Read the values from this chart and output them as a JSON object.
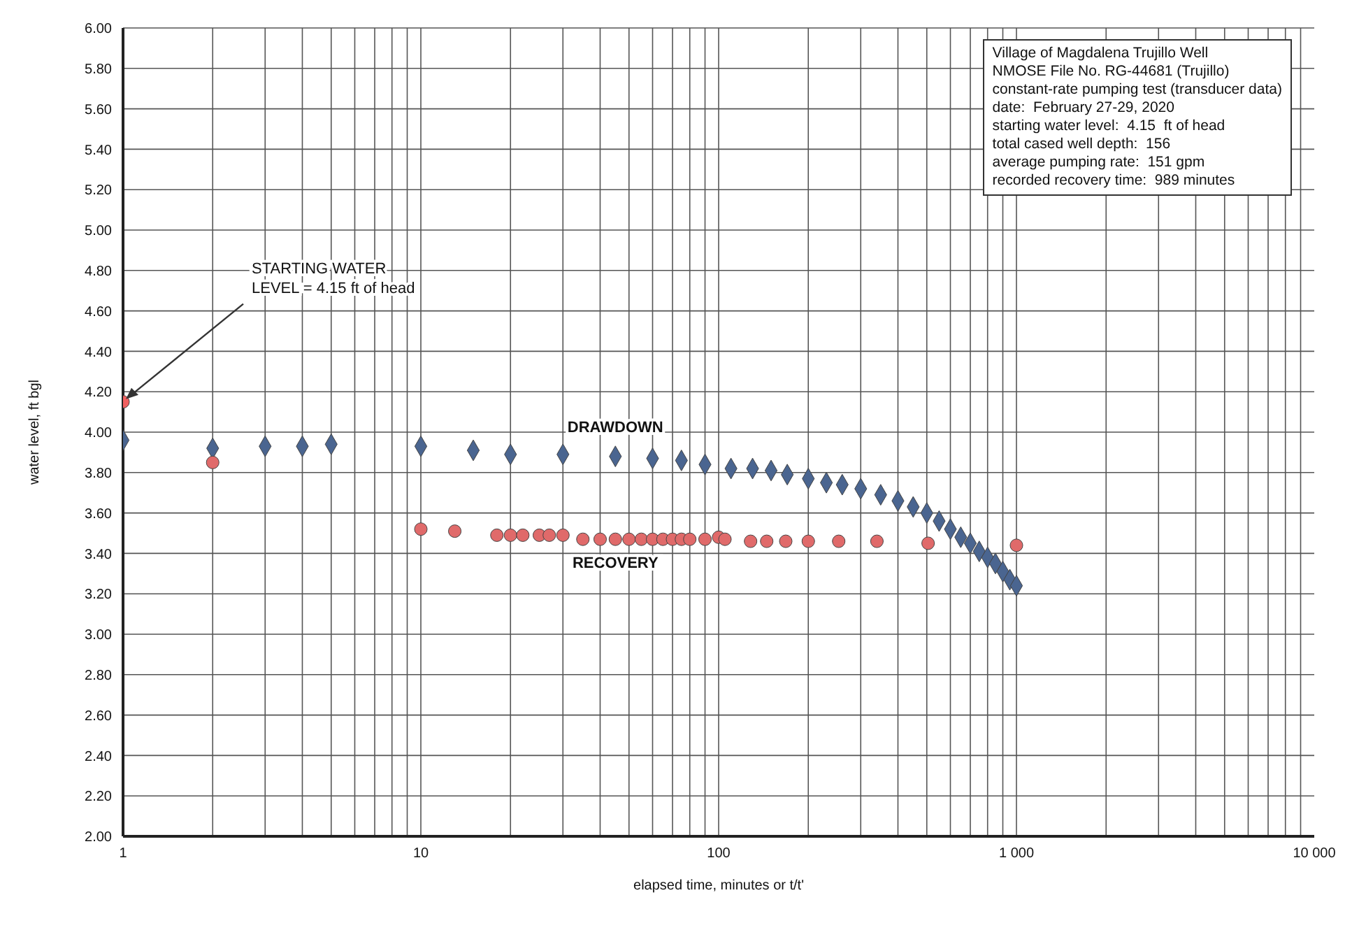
{
  "chart_data": {
    "type": "scatter",
    "xlabel": "elapsed time, minutes or t/t'",
    "ylabel": "water level, ft bgl",
    "log": "x",
    "grid": true,
    "legend": false,
    "xlim": [
      1,
      10000
    ],
    "xticks": [
      {
        "value": 1,
        "label": "1"
      },
      {
        "value": 10,
        "label": "10"
      },
      {
        "value": 100,
        "label": "100"
      },
      {
        "value": 1000,
        "label": "1 000"
      },
      {
        "value": 10000,
        "label": "10 000"
      }
    ],
    "ylim": [
      2,
      6
    ],
    "yticks": [
      {
        "value": 2,
        "label": "2.00"
      },
      {
        "value": 2.2,
        "label": "2.20"
      },
      {
        "value": 2.4,
        "label": "2.40"
      },
      {
        "value": 2.6,
        "label": "2.60"
      },
      {
        "value": 2.8,
        "label": "2.80"
      },
      {
        "value": 3,
        "label": "3.00"
      },
      {
        "value": 3.2,
        "label": "3.20"
      },
      {
        "value": 3.4,
        "label": "3.40"
      },
      {
        "value": 3.6,
        "label": "3.60"
      },
      {
        "value": 3.8,
        "label": "3.80"
      },
      {
        "value": 4,
        "label": "4.00"
      },
      {
        "value": 4.2,
        "label": "4.20"
      },
      {
        "value": 4.4,
        "label": "4.40"
      },
      {
        "value": 4.6,
        "label": "4.60"
      },
      {
        "value": 4.8,
        "label": "4.80"
      },
      {
        "value": 5,
        "label": "5.00"
      },
      {
        "value": 5.2,
        "label": "5.20"
      },
      {
        "value": 5.4,
        "label": "5.40"
      },
      {
        "value": 5.6,
        "label": "5.60"
      },
      {
        "value": 5.8,
        "label": "5.80"
      },
      {
        "value": 6,
        "label": "6.00"
      }
    ],
    "series": [
      {
        "name": "DRAWDOWN",
        "color": "#4a6590",
        "marker": "diamond",
        "x": [
          1,
          2,
          3,
          4,
          5,
          10,
          15,
          20,
          30,
          45,
          60,
          75,
          90,
          110,
          130,
          150,
          170,
          200,
          230,
          260,
          300,
          350,
          400,
          450,
          500,
          550,
          600,
          650,
          700,
          750,
          800,
          850,
          900,
          950,
          1000
        ],
        "values": [
          3.96,
          3.92,
          3.93,
          3.93,
          3.94,
          3.93,
          3.91,
          3.89,
          3.89,
          3.88,
          3.87,
          3.86,
          3.84,
          3.82,
          3.82,
          3.81,
          3.79,
          3.77,
          3.75,
          3.74,
          3.72,
          3.69,
          3.66,
          3.63,
          3.6,
          3.56,
          3.52,
          3.48,
          3.45,
          3.41,
          3.38,
          3.35,
          3.31,
          3.27,
          3.24
        ]
      },
      {
        "name": "RECOVERY",
        "color": "#e06a6a",
        "marker": "circle",
        "x": [
          2,
          10,
          13,
          18,
          20,
          22,
          25,
          27,
          30,
          35,
          40,
          45,
          50,
          55,
          60,
          65,
          70,
          75,
          80,
          90,
          100,
          105,
          128,
          145,
          168,
          200,
          253,
          340,
          505,
          1000
        ],
        "values": [
          3.85,
          3.52,
          3.51,
          3.49,
          3.49,
          3.49,
          3.49,
          3.49,
          3.49,
          3.47,
          3.47,
          3.47,
          3.47,
          3.47,
          3.47,
          3.47,
          3.47,
          3.47,
          3.47,
          3.47,
          3.48,
          3.47,
          3.46,
          3.46,
          3.46,
          3.46,
          3.46,
          3.46,
          3.45,
          3.44
        ]
      },
      {
        "color": "#f06060",
        "marker": "circle",
        "x": [
          1
        ],
        "values": [
          4.15
        ]
      }
    ],
    "annotations": [
      {
        "text": "STARTING WATER\nLEVEL = 4.15 ft of head",
        "x": 1,
        "y": 4.15
      },
      "Village of Magdalena Trujillo Well\nNMOSE File No. RG-44681 (Trujillo)\nconstant-rate pumping test (transducer data)\ndate:  February 27-29, 2020\nstarting water level:  4.15  ft of head\ntotal cased well depth:  156\naverage pumping rate:  151 gpm\nrecorded recovery time:  989 minutes"
    ]
  }
}
